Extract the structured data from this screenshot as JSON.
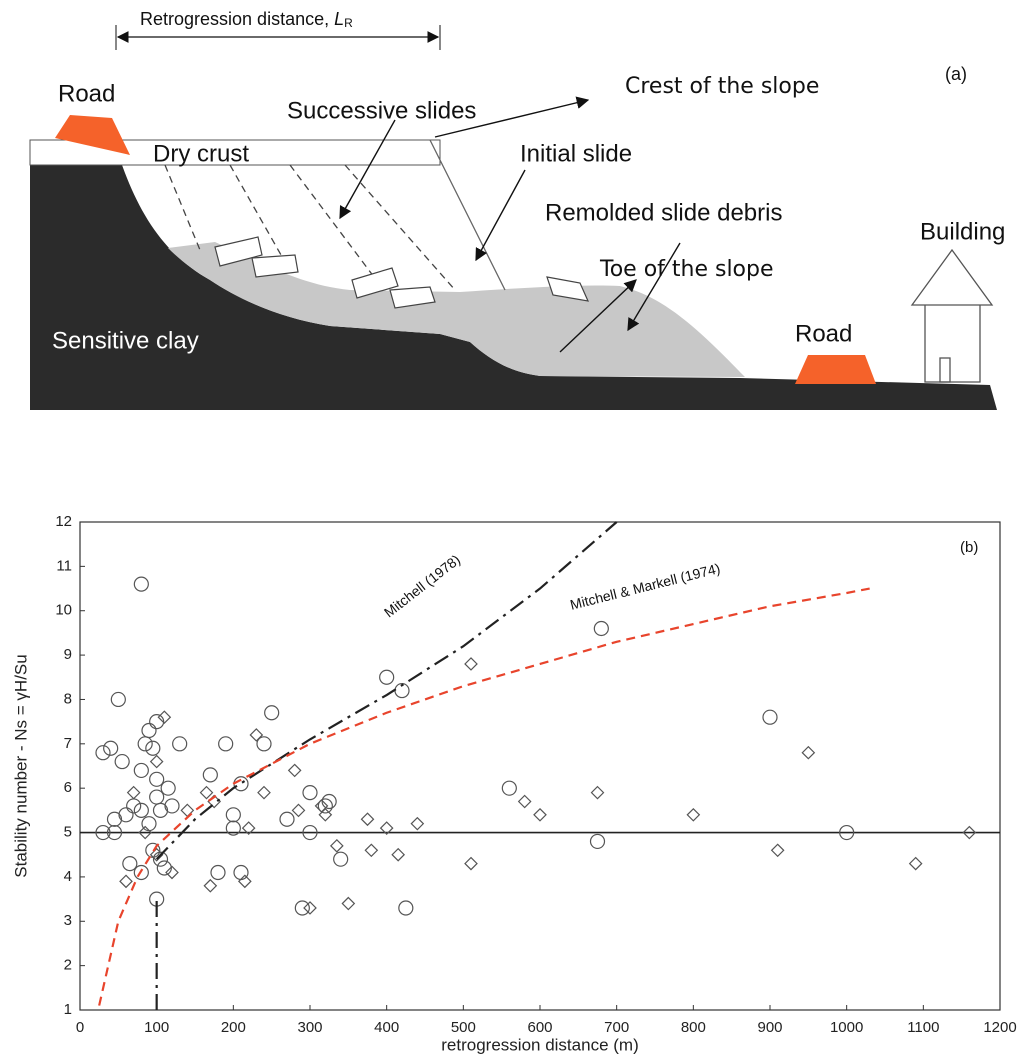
{
  "diagram": {
    "panel_label": "(a)",
    "retrogression": {
      "text": "Retrogression  distance,",
      "symbol": "L",
      "subscript": "R"
    },
    "labels": {
      "road_left": "Road",
      "dry_crust": "Dry crust",
      "successive_slides": "Successive slides",
      "crest": "Crest of the slope",
      "initial_slide": "Initial slide",
      "remolded_debris": "Remolded slide debris",
      "building": "Building",
      "toe": "Toe of the slope",
      "sensitive_clay": "Sensitive clay",
      "road_right": "Road"
    }
  },
  "chart_data": {
    "type": "scatter",
    "panel_label": "(b)",
    "xlabel": "retrogression distance (m)",
    "ylabel": "Stability number - Ns = γH/Su",
    "xlim": [
      0,
      1200
    ],
    "ylim": [
      1,
      12
    ],
    "xticks": [
      0,
      100,
      200,
      300,
      400,
      500,
      600,
      700,
      800,
      900,
      1000,
      1100,
      1200
    ],
    "yticks": [
      1,
      2,
      3,
      4,
      5,
      6,
      7,
      8,
      9,
      10,
      11,
      12
    ],
    "hline": 5,
    "series": [
      {
        "type": "scatter",
        "marker": "circle",
        "color": "#555555",
        "x": [
          80,
          50,
          100,
          90,
          85,
          95,
          30,
          40,
          55,
          130,
          80,
          100,
          115,
          170,
          190,
          250,
          210,
          240,
          400,
          420,
          680,
          900,
          560,
          30,
          45,
          45,
          60,
          70,
          80,
          90,
          100,
          105,
          120,
          200,
          200,
          270,
          300,
          320,
          325,
          300,
          290,
          340,
          425,
          100,
          80,
          95,
          105,
          180,
          210,
          675,
          1000,
          65,
          110
        ],
        "values": [
          10.6,
          8.0,
          7.5,
          7.3,
          7.0,
          6.9,
          6.8,
          6.9,
          6.6,
          7.0,
          6.4,
          6.2,
          6.0,
          6.3,
          7.0,
          7.7,
          6.1,
          7.0,
          8.5,
          8.2,
          9.6,
          7.6,
          6.0,
          5.0,
          5.0,
          5.3,
          5.4,
          5.6,
          5.5,
          5.2,
          5.8,
          5.5,
          5.6,
          5.4,
          5.1,
          5.3,
          5.9,
          5.6,
          5.7,
          5.0,
          3.3,
          4.4,
          3.3,
          3.5,
          4.1,
          4.6,
          4.4,
          4.1,
          4.1,
          4.8,
          5.0,
          4.3,
          4.2
        ]
      },
      {
        "type": "scatter",
        "marker": "diamond",
        "color": "#555555",
        "x": [
          110,
          100,
          230,
          240,
          220,
          165,
          175,
          280,
          285,
          315,
          320,
          375,
          400,
          440,
          510,
          580,
          600,
          675,
          800,
          950,
          910,
          1090,
          1160,
          510,
          415,
          380,
          335,
          350,
          300,
          215,
          170,
          120,
          100,
          70,
          85,
          140,
          60
        ],
        "values": [
          7.6,
          6.6,
          7.2,
          5.9,
          5.1,
          5.9,
          5.7,
          6.4,
          5.5,
          5.6,
          5.4,
          5.3,
          5.1,
          5.2,
          8.8,
          5.7,
          5.4,
          5.9,
          5.4,
          6.8,
          4.6,
          4.3,
          5.0,
          4.3,
          4.5,
          4.6,
          4.7,
          3.4,
          3.3,
          3.9,
          3.8,
          4.1,
          4.5,
          5.9,
          5.0,
          5.5,
          3.9
        ]
      },
      {
        "type": "line",
        "name": "Mitchell (1978)",
        "color": "#222222",
        "dash": "dashdot",
        "x": [
          100,
          100,
          null,
          100,
          150,
          200,
          300,
          400,
          500,
          600,
          700
        ],
        "values": [
          1,
          3.5,
          null,
          4.4,
          5.3,
          6.0,
          7.1,
          8.1,
          9.2,
          10.5,
          12.0
        ]
      },
      {
        "type": "line",
        "name": "Mitchell & Markell (1974)",
        "color": "#e8442c",
        "dash": "dashed",
        "x": [
          25,
          50,
          75,
          100,
          150,
          200,
          300,
          400,
          500,
          600,
          700,
          800,
          900,
          1000,
          1030
        ],
        "values": [
          1.1,
          3.0,
          4.0,
          4.7,
          5.5,
          6.1,
          7.0,
          7.7,
          8.3,
          8.8,
          9.3,
          9.7,
          10.1,
          10.4,
          10.5
        ]
      }
    ]
  }
}
